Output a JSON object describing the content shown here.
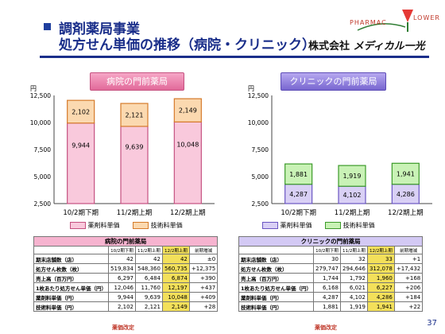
{
  "header": {
    "title_line1": "調剤薬局事業",
    "title_line2": "処方せん単価の推移（病院・クリニック）",
    "company_prefix": "株式会社",
    "company_name": "メディカル一光",
    "logo_text1": "PHARMAC",
    "logo_text2": "LOWER",
    "accent": "#1a2e8a"
  },
  "legend": {
    "drug": "薬剤料単価",
    "tech": "技術料単価"
  },
  "chart_data": [
    {
      "type": "bar",
      "title": "病院の門前薬局",
      "ylabel": "円",
      "categories": [
        "10/2期下期",
        "11/2期上期",
        "12/2期上期"
      ],
      "ylim": [
        2500,
        12500
      ],
      "yticks": [
        "12,500",
        "10,000",
        "7,500",
        "5,000",
        "2,500"
      ],
      "series": [
        {
          "name": "薬剤料単価",
          "values": [
            9944,
            9639,
            10048
          ],
          "labels": [
            "9,944",
            "9,639",
            "10,048"
          ],
          "color": "#f9c9dc"
        },
        {
          "name": "技術料単価",
          "values": [
            2102,
            2121,
            2149
          ],
          "labels": [
            "2,102",
            "2,121",
            "2,149"
          ],
          "color": "#fbd9b0"
        }
      ]
    },
    {
      "type": "bar",
      "title": "クリニックの門前薬局",
      "ylabel": "円",
      "categories": [
        "10/2期下期",
        "11/2期上期",
        "12/2期上期"
      ],
      "ylim": [
        2500,
        12500
      ],
      "yticks": [
        "12,500",
        "10,000",
        "7,500",
        "5,000",
        "2,500"
      ],
      "series": [
        {
          "name": "薬剤料単価",
          "values": [
            4287,
            4102,
            4286
          ],
          "labels": [
            "4,287",
            "4,102",
            "4,286"
          ],
          "color": "#d9d0f5"
        },
        {
          "name": "技術料単価",
          "values": [
            1881,
            1919,
            1941
          ],
          "labels": [
            "1,881",
            "1,919",
            "1,941"
          ],
          "color": "#c9f2b6"
        }
      ]
    }
  ],
  "tables": {
    "hospital": {
      "title": "病院の門前薬局",
      "columns": [
        "10/2期下期",
        "11/2期上期",
        "12/2期上期",
        "前期増減"
      ],
      "rows": [
        [
          "期末店舗数（店）",
          "42",
          "42",
          "42",
          "±0"
        ],
        [
          "処方せん枚数（枚）",
          "519,834",
          "548,360",
          "560,735",
          "+12,375"
        ],
        [
          "売上高（百万円）",
          "6,297",
          "6,484",
          "6,874",
          "+390"
        ],
        [
          "1枚あたり処方せん単価（円）",
          "12,046",
          "11,760",
          "12,197",
          "+437"
        ],
        [
          "薬剤料単価（円）",
          "9,944",
          "9,639",
          "10,048",
          "+409"
        ],
        [
          "技術料単価（円）",
          "2,102",
          "2,121",
          "2,149",
          "+28"
        ]
      ],
      "note": "薬価改定"
    },
    "clinic": {
      "title": "クリニックの門前薬局",
      "columns": [
        "10/2期下期",
        "11/2期上期",
        "12/2期上期",
        "前期増減"
      ],
      "rows": [
        [
          "期末店舗数（店）",
          "30",
          "32",
          "33",
          "+1"
        ],
        [
          "処方せん枚数（枚）",
          "279,747",
          "294,646",
          "312,078",
          "+17,432"
        ],
        [
          "売上高（百万円）",
          "1,744",
          "1,792",
          "1,960",
          "+168"
        ],
        [
          "1枚あたり処方せん単価（円）",
          "6,168",
          "6,021",
          "6,227",
          "+206"
        ],
        [
          "薬剤料単価（円）",
          "4,287",
          "4,102",
          "4,286",
          "+184"
        ],
        [
          "技術料単価（円）",
          "1,881",
          "1,919",
          "1,941",
          "+22"
        ]
      ],
      "note": "薬価改定"
    }
  },
  "page_number": "37"
}
